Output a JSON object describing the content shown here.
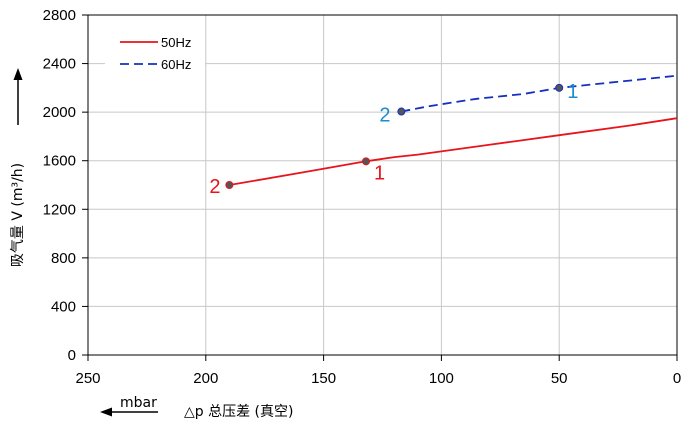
{
  "chart_data": {
    "type": "line",
    "xlabel": "△p 总压差 (真空)",
    "x_unit": "mbar",
    "ylabel": "吸气量 V (m³/h)",
    "xlim": [
      250,
      0
    ],
    "ylim": [
      0,
      2800
    ],
    "x_ticks": [
      "250",
      "200",
      "150",
      "100",
      "50",
      "0"
    ],
    "y_ticks": [
      "0",
      "400",
      "800",
      "1200",
      "1600",
      "2000",
      "2400",
      "2800"
    ],
    "x_tick_values": [
      250,
      200,
      150,
      100,
      50,
      0
    ],
    "y_tick_values": [
      0,
      400,
      800,
      1200,
      1600,
      2000,
      2400,
      2800
    ],
    "grid": true,
    "legend_position": "top-left",
    "series": [
      {
        "name": "50Hz",
        "color": "#e8141c",
        "dash": "solid",
        "x": [
          190,
          160,
          132,
          120,
          110,
          80,
          50,
          20,
          0
        ],
        "y": [
          1400,
          1500,
          1595,
          1630,
          1650,
          1730,
          1810,
          1890,
          1950
        ],
        "markers": [
          {
            "x": 190,
            "y": 1400,
            "label": "2"
          },
          {
            "x": 132,
            "y": 1595,
            "label": "1"
          }
        ]
      },
      {
        "name": "60Hz",
        "color": "#1530c0",
        "dash": "dashed",
        "x": [
          117,
          105,
          95,
          85,
          75,
          65,
          50,
          30,
          0
        ],
        "y": [
          2005,
          2050,
          2080,
          2110,
          2130,
          2150,
          2200,
          2240,
          2300
        ],
        "markers": [
          {
            "x": 117,
            "y": 2005,
            "label": "2"
          },
          {
            "x": 50,
            "y": 2200,
            "label": "1"
          }
        ]
      }
    ]
  },
  "colors": {
    "label_50hz": "#e8141c",
    "label_60hz": "#1a8ccf",
    "marker_fill": "#555555",
    "grid": "#c8c8c8"
  }
}
